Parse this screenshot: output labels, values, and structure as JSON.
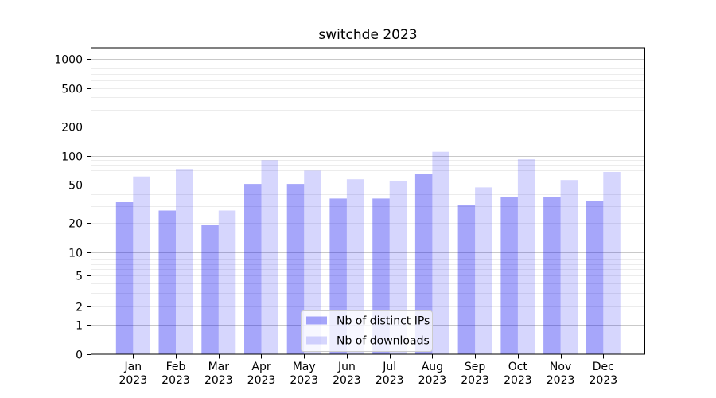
{
  "chart_data": {
    "type": "bar",
    "title": "switchde 2023",
    "categories": [
      "Jan",
      "Feb",
      "Mar",
      "Apr",
      "May",
      "Jun",
      "Jul",
      "Aug",
      "Sep",
      "Oct",
      "Nov",
      "Dec"
    ],
    "category_year": "2023",
    "series": [
      {
        "name": "Nb of distinct IPs",
        "swatch_color": "#a8a8f6",
        "fill": "#0000f0",
        "fill_opacity": 0.35,
        "values": [
          33,
          27,
          19,
          51,
          51,
          36,
          36,
          65,
          31,
          37,
          37,
          34
        ]
      },
      {
        "name": "Nb of downloads",
        "swatch_color": "#d9d9fb",
        "fill": "#0000f0",
        "fill_opacity": 0.16,
        "values": [
          61,
          73,
          27,
          90,
          70,
          57,
          55,
          110,
          47,
          92,
          56,
          68
        ]
      }
    ],
    "xlabel": "",
    "ylabel": "",
    "yscale": "symlog",
    "ylim": [
      0,
      1300
    ],
    "yticks": [
      0,
      1,
      2,
      5,
      10,
      20,
      50,
      100,
      200,
      500,
      1000
    ],
    "major_gridlines": [
      1,
      10,
      100,
      1000
    ],
    "minor_gridlines": [
      2,
      3,
      4,
      5,
      6,
      7,
      8,
      9,
      20,
      30,
      40,
      50,
      60,
      70,
      80,
      90,
      200,
      300,
      400,
      500,
      600,
      700,
      800,
      900
    ],
    "grid": "both",
    "legend_position": "lower center"
  },
  "colors": {
    "background": "#ffffff",
    "axis": "#000000",
    "text": "#000000",
    "major_grid": "#c9c9c9",
    "minor_grid": "#ececec",
    "legend_bg": "#ffffff",
    "legend_border": "#cccccc"
  }
}
